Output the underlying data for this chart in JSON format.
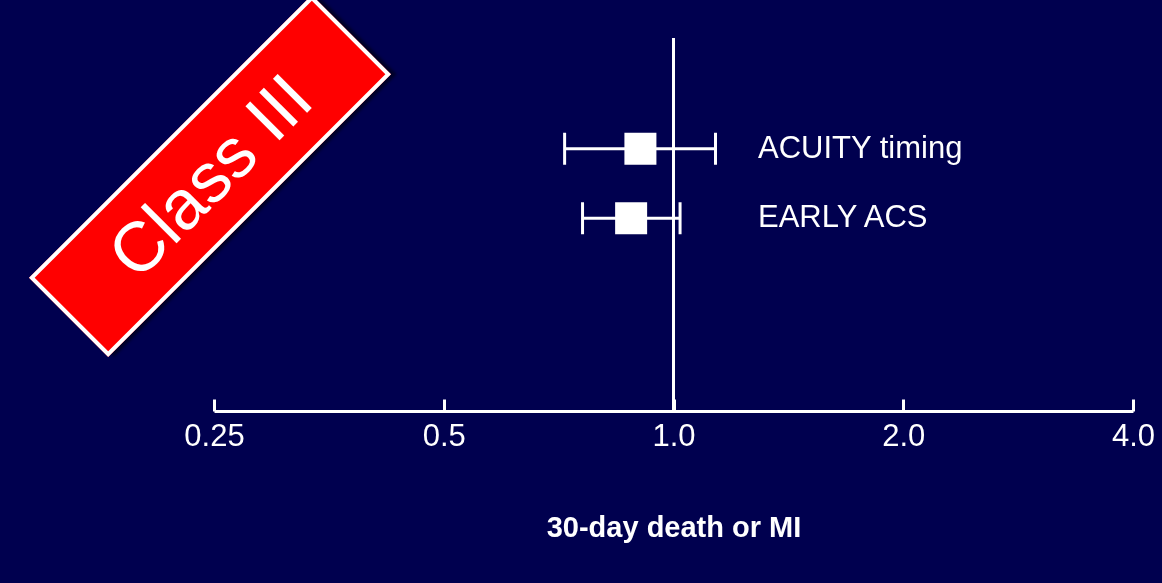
{
  "chart_data": {
    "type": "scatter",
    "orientation": "horizontal",
    "categories": [
      "ACUITY timing",
      "EARLY ACS"
    ],
    "values": [
      0.905,
      0.88
    ],
    "errors": [
      [
        0.72,
        1.135
      ],
      [
        0.76,
        1.02
      ]
    ],
    "color": "#ffffff",
    "marker": "square",
    "log": "x",
    "xlim": [
      0.25,
      4
    ],
    "xticks": [
      0.25,
      0.5,
      {
        "value": 1,
        "label": "1.0"
      },
      {
        "value": 2,
        "label": "2.0"
      },
      {
        "value": 4,
        "label": "4.0"
      }
    ],
    "xlabel": "30-day death or MI",
    "ref_lines": [
      {
        "axis": "x",
        "value": 1,
        "color": "#ffffff"
      }
    ],
    "annotations": [
      "Class III"
    ],
    "grid": false,
    "legend": false
  }
}
